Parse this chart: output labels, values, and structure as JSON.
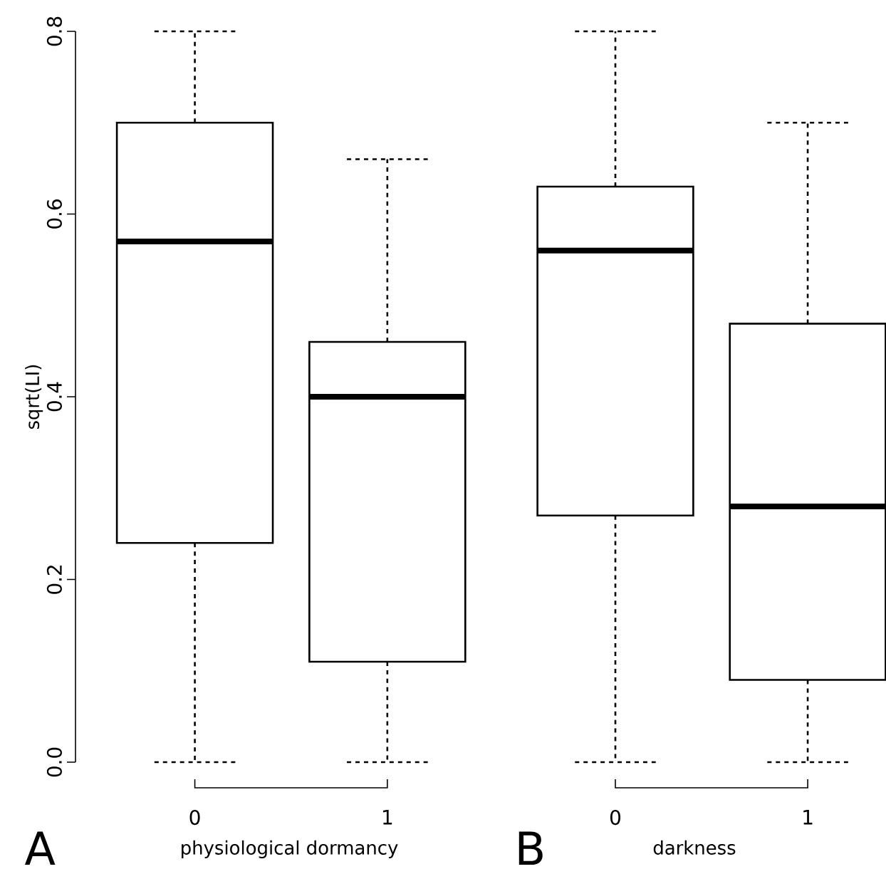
{
  "chart_data": [
    {
      "type": "box",
      "categories": [
        "0",
        "1"
      ],
      "xlabel": "physiological dormancy",
      "ylabel": "sqrt(LI)",
      "ylim": [
        0,
        0.8
      ],
      "yticks": [
        {
          "value": 0,
          "label": "0.0"
        },
        0.2,
        0.4,
        0.6,
        0.8
      ],
      "annotations": [
        "A"
      ],
      "boxes": [
        {
          "low": 0,
          "q1": 0.24,
          "median": 0.57,
          "q3": 0.7,
          "high": 0.8
        },
        {
          "low": 0,
          "q1": 0.11,
          "median": 0.4,
          "q3": 0.46,
          "high": 0.66
        }
      ]
    },
    {
      "type": "box",
      "categories": [
        "0",
        "1"
      ],
      "xlabel": "darkness",
      "ylim": [
        0,
        0.8
      ],
      "tick_labels": "x",
      "annotations": [
        "B"
      ],
      "boxes": [
        {
          "low": 0,
          "q1": 0.27,
          "median": 0.56,
          "q3": 0.63,
          "high": 0.8
        },
        {
          "low": 0,
          "q1": 0.09,
          "median": 0.28,
          "q3": 0.48,
          "high": 0.7
        }
      ]
    }
  ]
}
